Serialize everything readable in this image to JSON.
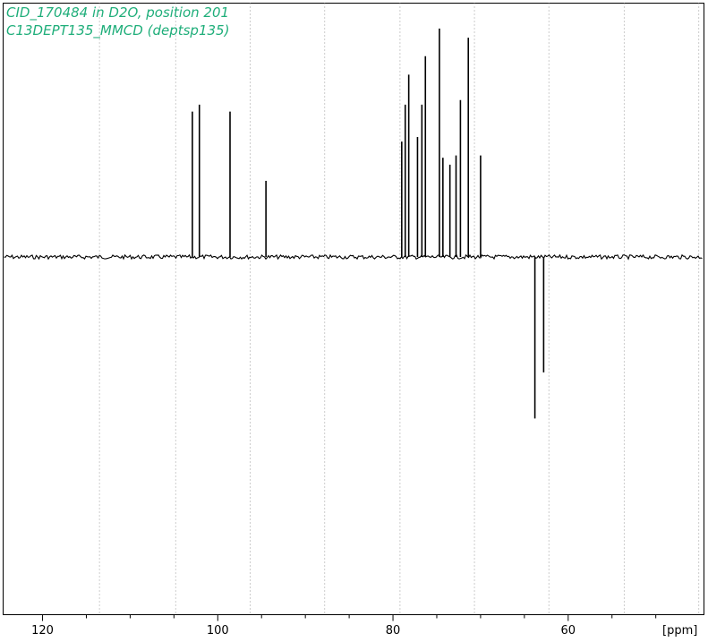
{
  "header": {
    "line1": "CID_170484 in D2O, position 201",
    "line2": "C13DEPT135_MMCD (deptsp135)",
    "color": "#1fae7a"
  },
  "chart_data": {
    "type": "line",
    "xlabel": "[ppm]",
    "x_axis": "reversed",
    "xlim": [
      124.5,
      44.5
    ],
    "ylim": [
      -1.55,
      1.1
    ],
    "baseline": 0,
    "grid": "dotted-vertical",
    "grid_x": [
      113.5,
      104.8,
      96.3,
      87.8,
      79.2,
      70.7,
      62.2,
      53.6,
      45.1
    ],
    "ticks": [
      {
        "value": 120,
        "label": "120"
      },
      {
        "value": 100,
        "label": "100"
      },
      {
        "value": 80,
        "label": "80"
      },
      {
        "value": 60,
        "label": "60"
      }
    ],
    "minor_ticks": [
      115,
      110,
      105,
      95,
      90,
      85,
      75,
      70,
      65,
      55,
      50
    ],
    "line_color": "#000000",
    "peaks": [
      {
        "ppm": 102.9,
        "intensity": 0.63
      },
      {
        "ppm": 102.1,
        "intensity": 0.66
      },
      {
        "ppm": 98.6,
        "intensity": 0.63
      },
      {
        "ppm": 94.5,
        "intensity": 0.33
      },
      {
        "ppm": 79.0,
        "intensity": 0.5
      },
      {
        "ppm": 78.6,
        "intensity": 0.66
      },
      {
        "ppm": 78.2,
        "intensity": 0.79
      },
      {
        "ppm": 77.2,
        "intensity": 0.52
      },
      {
        "ppm": 76.7,
        "intensity": 0.66
      },
      {
        "ppm": 76.3,
        "intensity": 0.87
      },
      {
        "ppm": 74.7,
        "intensity": 0.99
      },
      {
        "ppm": 74.3,
        "intensity": 0.43
      },
      {
        "ppm": 73.5,
        "intensity": 0.4
      },
      {
        "ppm": 72.8,
        "intensity": 0.44
      },
      {
        "ppm": 72.3,
        "intensity": 0.68
      },
      {
        "ppm": 71.4,
        "intensity": 0.95
      },
      {
        "ppm": 70.0,
        "intensity": 0.44
      },
      {
        "ppm": 63.8,
        "intensity": -0.7
      },
      {
        "ppm": 62.8,
        "intensity": -0.5
      }
    ]
  }
}
